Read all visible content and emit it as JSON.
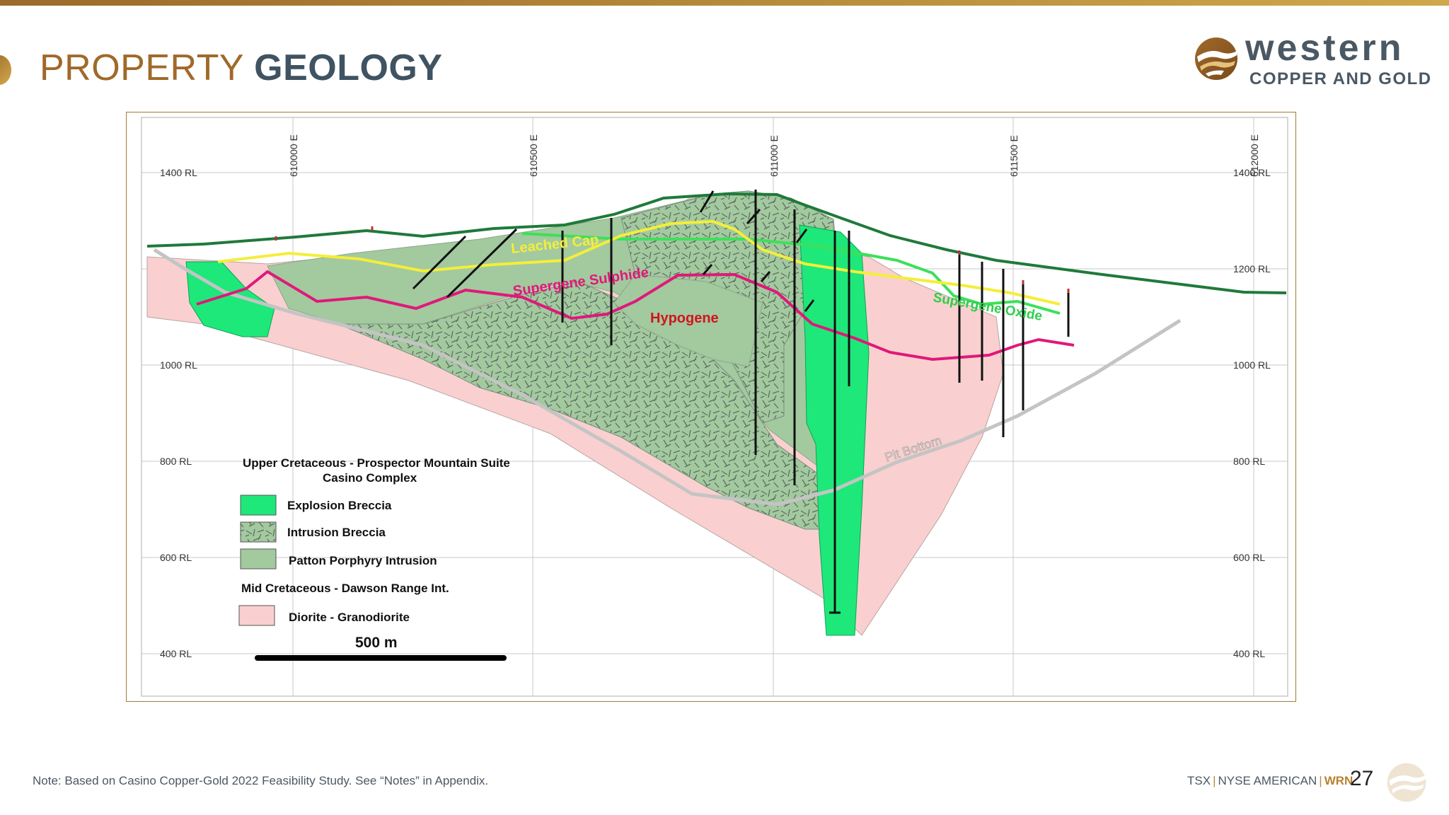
{
  "header": {
    "title_part1": "PROPERTY",
    "title_part2": "GEOLOGY",
    "accent_color": "#a0692a"
  },
  "brand": {
    "name": "western",
    "subtitle": "COPPER AND GOLD",
    "logo_icon": "western-logo-icon"
  },
  "section": {
    "eastings": [
      "610000 E",
      "610500 E",
      "611000 E",
      "611500 E",
      "612000 E"
    ],
    "elevations": [
      "1400 RL",
      "1200 RL",
      "1000 RL",
      "800 RL",
      "600 RL",
      "400 RL"
    ],
    "zone_labels": {
      "leached_cap": "Leached Cap",
      "supergene_sulphide": "Supergene Sulphide",
      "hypogene": "Hypogene",
      "supergene_oxide": "Supergene Oxide",
      "pit_bottom": "Pit Bottom"
    },
    "colors": {
      "topography": "#1f7a3a",
      "leached_cap": "#f4ee3a",
      "supergene_oxide": "#3de05a",
      "supergene_sulphide": "#e0187a",
      "pit_bottom": "#c4c4c4",
      "explosion_breccia": "#1ee87a",
      "patton_porphyry": "#a3c99f",
      "diorite": "#f9d0cf"
    }
  },
  "legend": {
    "group1_title_line1": "Upper Cretaceous - Prospector Mountain Suite",
    "group1_title_line2": "Casino Complex",
    "explosion_breccia": "Explosion Breccia",
    "intrusion_breccia": "Intrusion Breccia",
    "patton_porphyry": "Patton Porphyry Intrusion",
    "group2_title": "Mid Cretaceous - Dawson Range Int.",
    "diorite": "Diorite - Granodiorite",
    "scale": "500 m"
  },
  "footer": {
    "note": "Note: Based on Casino Copper-Gold 2022 Feasibility Study. See “Notes” in Appendix.",
    "ticker_tsx": "TSX",
    "ticker_nyse": "NYSE AMERICAN",
    "ticker_wrn": "WRN",
    "page_number": "27"
  }
}
